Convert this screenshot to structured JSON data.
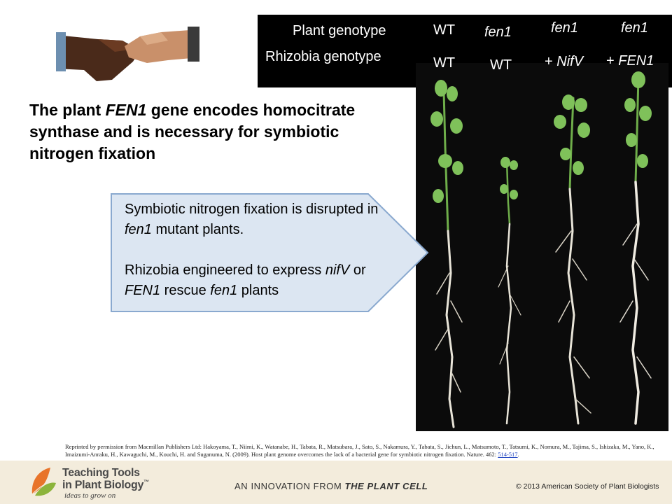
{
  "genotype_header": {
    "plant_label": "Plant genotype",
    "rhizobia_label": "Rhizobia genotype",
    "columns": [
      {
        "plant": "WT",
        "rhizobia": "WT"
      },
      {
        "plant": "fen1",
        "rhizobia": "WT"
      },
      {
        "plant": "fen1",
        "rhizobia_prefix": "+ ",
        "rhizobia": "NifV"
      },
      {
        "plant": "fen1",
        "rhizobia_prefix": "+ ",
        "rhizobia": "FEN1"
      }
    ]
  },
  "headline": {
    "pre": "The plant ",
    "gene": "FEN1",
    "post": " gene encodes homocitrate synthase and is necessary for symbiotic nitrogen fixation"
  },
  "callout": {
    "p1_pre": "Symbiotic nitrogen fixation is disrupted in ",
    "p1_gene": "fen1",
    "p1_post": " mutant plants.",
    "p2_pre": "Rhizobia engineered to express ",
    "p2_gene1": "nifV",
    "p2_mid": " or ",
    "p2_gene2": "FEN1",
    "p2_mid2": " rescue ",
    "p2_gene3": "fen1",
    "p2_post": " plants"
  },
  "citation": {
    "text": "Reprinted by permission from Macmillan Publishers Ltd: Hakoyama, T., Niimi, K., Watanabe, H., Tabata, R., Matsubara, J., Sato, S., Nakamura, Y., Tabata, S., Jichun, L., Matsumoto, T., Tatsumi, K., Nomura, M., Tajima, S., Ishizaka, M., Yano, K., Imaizumi-Anraku, H., Kawaguchi, M., Kouchi, H. and Suganuma, N. (2009). Host plant genome overcomes the lack of a bacterial gene for symbiotic nitrogen fixation. Nature. 462: ",
    "link": "514-517",
    "end": "."
  },
  "footer": {
    "logo_line1": "Teaching Tools",
    "logo_line2": "in Plant Biology",
    "logo_tm": "™",
    "tagline": "ideas to grow on",
    "innovation_pre": "AN INNOVATION FROM ",
    "innovation_brand": "THE PLANT CELL",
    "copyright": "© 2013 American Society of Plant Biologists"
  },
  "colors": {
    "callout_fill": "#dce6f2",
    "callout_stroke": "#8aa9cf",
    "footer_bg": "#f3ecdc"
  }
}
